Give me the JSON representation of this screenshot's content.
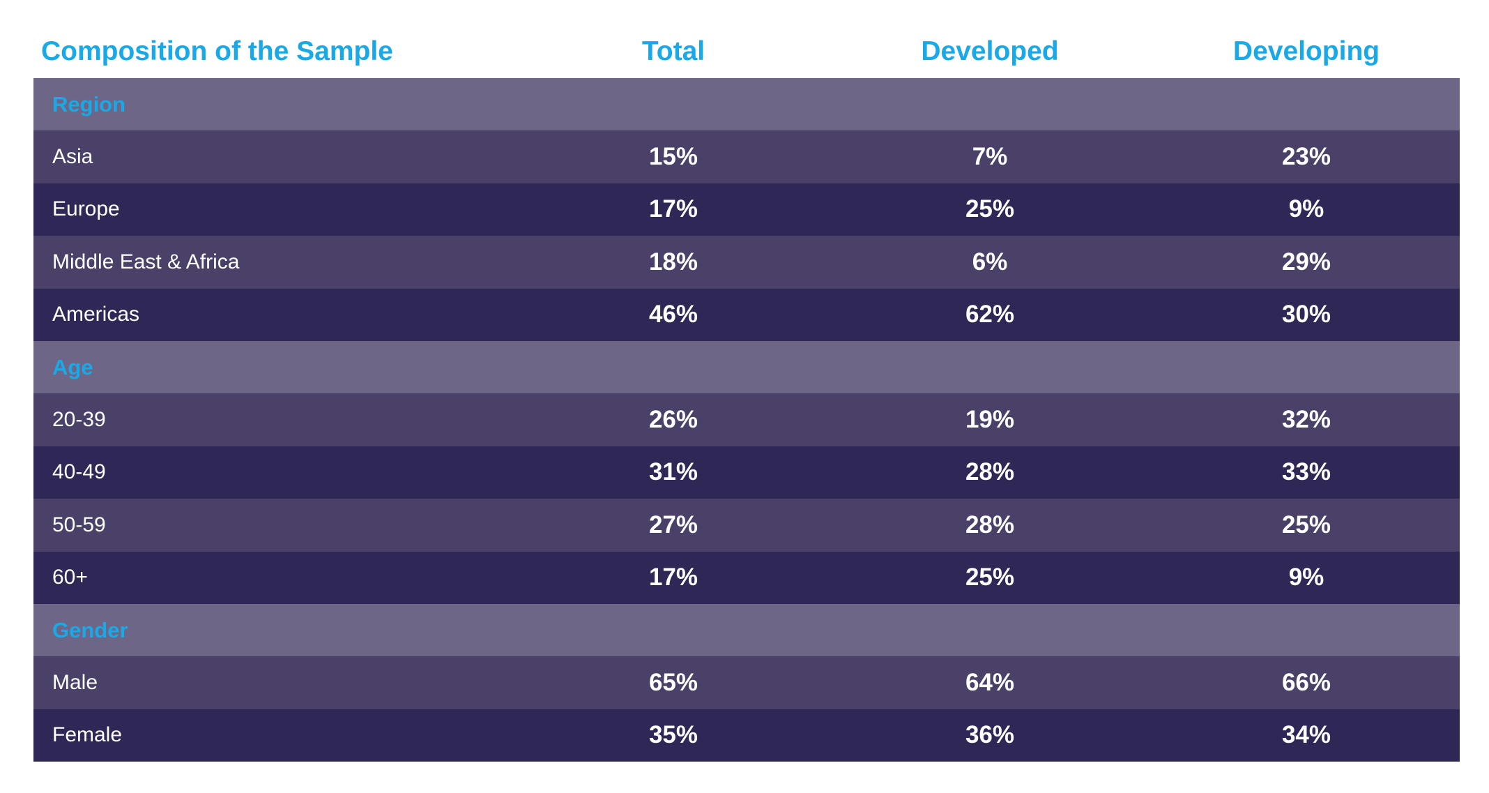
{
  "header": {
    "title": "Composition of the Sample",
    "columns": [
      "Total",
      "Developed",
      "Developing"
    ]
  },
  "sections": [
    {
      "name": "Region",
      "rows": [
        {
          "label": "Asia",
          "values": [
            "15%",
            "7%",
            "23%"
          ]
        },
        {
          "label": "Europe",
          "values": [
            "17%",
            "25%",
            "9%"
          ]
        },
        {
          "label": "Middle East & Africa",
          "values": [
            "18%",
            "6%",
            "29%"
          ]
        },
        {
          "label": "Americas",
          "values": [
            "46%",
            "62%",
            "30%"
          ]
        }
      ]
    },
    {
      "name": "Age",
      "rows": [
        {
          "label": "20-39",
          "values": [
            "26%",
            "19%",
            "32%"
          ]
        },
        {
          "label": "40-49",
          "values": [
            "31%",
            "28%",
            "33%"
          ]
        },
        {
          "label": "50-59",
          "values": [
            "27%",
            "28%",
            "25%"
          ]
        },
        {
          "label": "60+",
          "values": [
            "17%",
            "25%",
            "9%"
          ]
        }
      ]
    },
    {
      "name": "Gender",
      "rows": [
        {
          "label": "Male",
          "values": [
            "65%",
            "64%",
            "66%"
          ]
        },
        {
          "label": "Female",
          "values": [
            "35%",
            "36%",
            "34%"
          ]
        }
      ]
    }
  ]
}
